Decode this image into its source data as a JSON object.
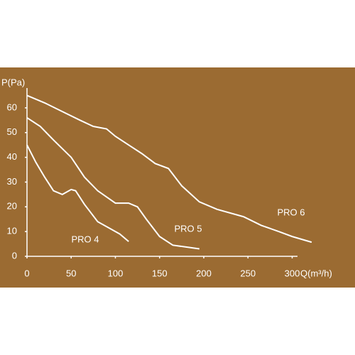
{
  "chart_data": {
    "type": "line",
    "x_label": "Q(m³/h)",
    "y_label": "P(Pa)",
    "xlim": [
      0,
      306
    ],
    "ylim": [
      0,
      68
    ],
    "xticks": [
      0,
      50,
      100,
      150,
      200,
      250,
      300
    ],
    "yticks": [
      0,
      10,
      20,
      30,
      40,
      50,
      60
    ],
    "series": [
      {
        "name": "PRO 4",
        "color": "#ffffff",
        "x": [
          0,
          10,
          20,
          30,
          40,
          50,
          55,
          65,
          80,
          95,
          105,
          115
        ],
        "values": [
          45,
          38,
          32,
          26.5,
          25,
          27,
          26.5,
          21,
          14,
          11,
          9,
          6
        ]
      },
      {
        "name": "PRO 5",
        "color": "#ffffff",
        "x": [
          0,
          15,
          30,
          50,
          65,
          80,
          100,
          115,
          125,
          135,
          150,
          165,
          185,
          195
        ],
        "values": [
          56,
          52.5,
          47,
          40,
          32,
          26.5,
          21.5,
          21.5,
          20,
          15,
          8,
          4.5,
          3.5,
          3
        ]
      },
      {
        "name": "PRO 6",
        "color": "#ffffff",
        "x": [
          0,
          20,
          40,
          60,
          75,
          90,
          100,
          115,
          130,
          145,
          160,
          175,
          195,
          215,
          245,
          265,
          285,
          300,
          322
        ],
        "values": [
          65,
          62,
          58.5,
          55,
          52.5,
          51.5,
          48.5,
          45,
          41.5,
          37.5,
          35.5,
          28.5,
          22,
          19,
          16,
          12.5,
          10,
          8,
          5.7
        ]
      }
    ]
  }
}
